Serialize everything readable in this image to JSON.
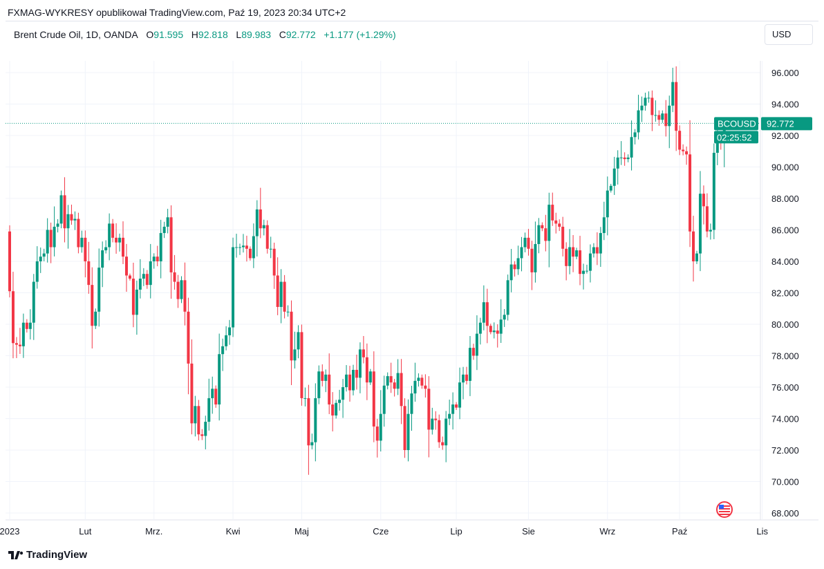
{
  "header": {
    "published": "FXMAG-WYKRESY opublikował TradingView.com, Paź 19, 2023 20:34 UTC+2"
  },
  "legend": {
    "symbol": "Brent Crude Oil, 1D, OANDA",
    "o_label": "O",
    "o": "91.595",
    "h_label": "H",
    "h": "92.818",
    "l_label": "L",
    "l": "89.983",
    "c_label": "C",
    "c": "92.772",
    "change": "+1.177 (+1.29%)"
  },
  "currency": "USD",
  "brand": "TradingView",
  "colors": {
    "up": "#089981",
    "down": "#f23645",
    "grid": "#f0f3fa"
  },
  "chart_data": {
    "type": "candlestick",
    "title": "Brent Crude Oil, 1D, OANDA",
    "ylim": [
      68,
      96
    ],
    "yticks": [
      "68.000",
      "70.000",
      "72.000",
      "74.000",
      "76.000",
      "78.000",
      "80.000",
      "82.000",
      "84.000",
      "86.000",
      "88.000",
      "90.000",
      "92.000",
      "94.000",
      "96.000"
    ],
    "grid": true,
    "first_open": 85.9,
    "last": {
      "open": 91.595,
      "high": 92.818,
      "low": 89.983,
      "close": 92.772
    },
    "current_price": {
      "symbol": "BCOUSD",
      "price": "92.772",
      "countdown": "02:25:52"
    },
    "months": [
      {
        "label": "2023",
        "closes": [
          82.1,
          78.8,
          78.7,
          78.6,
          80.1,
          79.7,
          80.1,
          82.7,
          84.0,
          84.3,
          84.5,
          86.0,
          84.9,
          86.2,
          86.4,
          88.2,
          86.1,
          87.0,
          86.6,
          86.7,
          84.9,
          85.5
        ]
      },
      {
        "label": "Lut",
        "closes": [
          84.0,
          82.5,
          79.9,
          80.8,
          83.6,
          84.7,
          84.9,
          86.4,
          85.5,
          85.2,
          85.5,
          84.3,
          83.1,
          82.9,
          80.6,
          82.2,
          82.9,
          83.2,
          82.5,
          84.0
        ]
      },
      {
        "label": "Mrz.",
        "closes": [
          84.3,
          84.0,
          85.8,
          86.2,
          86.8,
          83.3,
          82.7,
          81.6,
          82.8,
          80.8,
          77.5,
          73.7,
          74.8,
          73.0,
          72.9,
          73.8,
          75.3,
          75.9,
          74.9,
          78.1,
          78.6,
          79.3,
          79.8
        ]
      },
      {
        "label": "Kwi",
        "closes": [
          84.9,
          84.9,
          84.9,
          85.0,
          84.8,
          84.2,
          85.6,
          87.3,
          86.1,
          86.3,
          84.8,
          84.8,
          83.1,
          81.1,
          82.7,
          80.8,
          80.8,
          77.7,
          78.4,
          79.5
        ]
      },
      {
        "label": "Maj",
        "closes": [
          75.3,
          75.3,
          72.3,
          72.5,
          75.3,
          77.0,
          76.4,
          76.8,
          74.9,
          74.2,
          75.0,
          75.2,
          76.0,
          76.8,
          75.8,
          77.1,
          76.6,
          78.4,
          77.9,
          76.3,
          77.0,
          73.5,
          72.6
        ]
      },
      {
        "label": "Cze",
        "closes": [
          74.3,
          76.1,
          76.7,
          76.3,
          75.9,
          76.9,
          74.8,
          72.0,
          74.3,
          75.6,
          76.4,
          76.6,
          76.1,
          75.9,
          73.3,
          74.0,
          73.9,
          72.5,
          72.3,
          74.0,
          74.3,
          74.9
        ]
      },
      {
        "label": "Lip",
        "closes": [
          74.7,
          76.3,
          76.8,
          76.4,
          78.5,
          78.0,
          79.4,
          80.1,
          81.4,
          79.9,
          79.5,
          79.6,
          79.4,
          80.3,
          80.6,
          82.8,
          83.8,
          83.5,
          84.2,
          84.9,
          85.5
        ]
      },
      {
        "label": "Sie",
        "closes": [
          84.8,
          83.3,
          85.1,
          86.3,
          86.1,
          85.3,
          87.6,
          86.6,
          86.4,
          86.2,
          84.8,
          83.7,
          84.9,
          84.3,
          84.7,
          83.2,
          83.4,
          83.4,
          84.5,
          84.9,
          84.5,
          85.8,
          86.8
        ]
      },
      {
        "label": "Wrz",
        "closes": [
          88.5,
          88.8,
          89.9,
          90.6,
          90.6,
          90.5,
          90.6,
          91.9,
          92.2,
          93.6,
          93.9,
          94.4,
          94.4,
          93.3,
          93.3,
          93.0,
          93.4,
          92.6,
          93.9,
          95.4,
          92.3
        ]
      },
      {
        "label": "Paź",
        "closes": [
          91.1,
          91.0,
          90.8,
          85.9,
          84.0,
          84.5,
          88.3,
          87.5,
          85.9,
          86.0,
          90.9,
          91.6,
          91.595,
          92.772
        ]
      },
      {
        "label": "Lis",
        "closes": []
      }
    ]
  }
}
